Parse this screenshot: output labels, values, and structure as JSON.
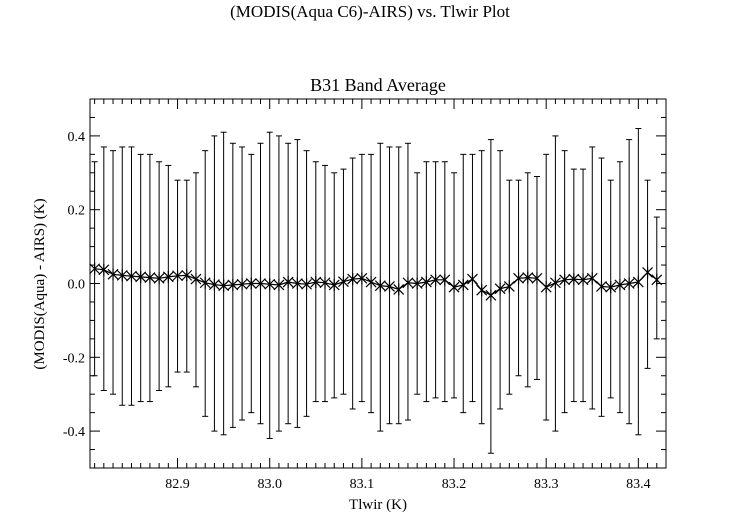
{
  "page_title": "(MODIS(Aqua C6)-AIRS) vs. Tlwir Plot",
  "chart_data": {
    "type": "scatter",
    "title": "B31 Band Average",
    "xlabel": "Tlwir (K)",
    "ylabel": "(MODIS(Aqua) - AIRS) (K)",
    "xlim": [
      82.805,
      83.43
    ],
    "ylim": [
      -0.5,
      0.5
    ],
    "xticks": [
      "82.9",
      "83.0",
      "83.1",
      "83.2",
      "83.3",
      "83.4"
    ],
    "xtick_values": [
      82.9,
      83.0,
      83.1,
      83.2,
      83.3,
      83.4
    ],
    "yticks": [
      "-0.4",
      "-0.2",
      "0.0",
      "0.2",
      "0.4"
    ],
    "ytick_values": [
      -0.4,
      -0.2,
      0.0,
      0.2,
      0.4
    ],
    "grid": false,
    "marker": "asterisk",
    "error_bars": true,
    "points": [
      {
        "x": 82.81,
        "y": 0.04,
        "lo": -0.25,
        "hi": 0.33
      },
      {
        "x": 82.82,
        "y": 0.037,
        "lo": -0.29,
        "hi": 0.37
      },
      {
        "x": 82.83,
        "y": 0.025,
        "lo": -0.3,
        "hi": 0.36
      },
      {
        "x": 82.84,
        "y": 0.022,
        "lo": -0.33,
        "hi": 0.37
      },
      {
        "x": 82.85,
        "y": 0.02,
        "lo": -0.33,
        "hi": 0.37
      },
      {
        "x": 82.86,
        "y": 0.018,
        "lo": -0.32,
        "hi": 0.35
      },
      {
        "x": 82.87,
        "y": 0.016,
        "lo": -0.32,
        "hi": 0.35
      },
      {
        "x": 82.88,
        "y": 0.014,
        "lo": -0.29,
        "hi": 0.33
      },
      {
        "x": 82.89,
        "y": 0.018,
        "lo": -0.28,
        "hi": 0.32
      },
      {
        "x": 82.9,
        "y": 0.021,
        "lo": -0.24,
        "hi": 0.28
      },
      {
        "x": 82.91,
        "y": 0.022,
        "lo": -0.24,
        "hi": 0.28
      },
      {
        "x": 82.92,
        "y": 0.012,
        "lo": -0.28,
        "hi": 0.3
      },
      {
        "x": 82.93,
        "y": 0.002,
        "lo": -0.36,
        "hi": 0.36
      },
      {
        "x": 82.94,
        "y": -0.003,
        "lo": -0.4,
        "hi": 0.4
      },
      {
        "x": 82.95,
        "y": -0.006,
        "lo": -0.41,
        "hi": 0.41
      },
      {
        "x": 82.96,
        "y": -0.004,
        "lo": -0.39,
        "hi": 0.38
      },
      {
        "x": 82.97,
        "y": -0.002,
        "lo": -0.37,
        "hi": 0.37
      },
      {
        "x": 82.98,
        "y": 0.0,
        "lo": -0.35,
        "hi": 0.35
      },
      {
        "x": 82.99,
        "y": 0.0,
        "lo": -0.38,
        "hi": 0.38
      },
      {
        "x": 83.0,
        "y": -0.002,
        "lo": -0.42,
        "hi": 0.41
      },
      {
        "x": 83.01,
        "y": -0.004,
        "lo": -0.4,
        "hi": 0.4
      },
      {
        "x": 83.02,
        "y": 0.004,
        "lo": -0.38,
        "hi": 0.38
      },
      {
        "x": 83.03,
        "y": 0.0,
        "lo": -0.39,
        "hi": 0.39
      },
      {
        "x": 83.04,
        "y": -0.002,
        "lo": -0.36,
        "hi": 0.36
      },
      {
        "x": 83.05,
        "y": 0.004,
        "lo": -0.32,
        "hi": 0.33
      },
      {
        "x": 83.06,
        "y": 0.002,
        "lo": -0.32,
        "hi": 0.32
      },
      {
        "x": 83.07,
        "y": -0.004,
        "lo": -0.31,
        "hi": 0.3
      },
      {
        "x": 83.08,
        "y": 0.005,
        "lo": -0.3,
        "hi": 0.31
      },
      {
        "x": 83.09,
        "y": 0.012,
        "lo": -0.34,
        "hi": 0.34
      },
      {
        "x": 83.1,
        "y": 0.014,
        "lo": -0.32,
        "hi": 0.35
      },
      {
        "x": 83.11,
        "y": 0.004,
        "lo": -0.35,
        "hi": 0.35
      },
      {
        "x": 83.12,
        "y": -0.006,
        "lo": -0.4,
        "hi": 0.38
      },
      {
        "x": 83.13,
        "y": -0.008,
        "lo": -0.38,
        "hi": 0.37
      },
      {
        "x": 83.14,
        "y": -0.016,
        "lo": -0.38,
        "hi": 0.37
      },
      {
        "x": 83.15,
        "y": 0.002,
        "lo": -0.37,
        "hi": 0.38
      },
      {
        "x": 83.16,
        "y": 0.0,
        "lo": -0.3,
        "hi": 0.3
      },
      {
        "x": 83.17,
        "y": 0.004,
        "lo": -0.32,
        "hi": 0.33
      },
      {
        "x": 83.18,
        "y": 0.01,
        "lo": -0.31,
        "hi": 0.33
      },
      {
        "x": 83.19,
        "y": 0.01,
        "lo": -0.32,
        "hi": 0.33
      },
      {
        "x": 83.2,
        "y": -0.01,
        "lo": -0.31,
        "hi": 0.3
      },
      {
        "x": 83.21,
        "y": -0.004,
        "lo": -0.35,
        "hi": 0.35
      },
      {
        "x": 83.22,
        "y": 0.012,
        "lo": -0.32,
        "hi": 0.35
      },
      {
        "x": 83.23,
        "y": -0.018,
        "lo": -0.38,
        "hi": 0.36
      },
      {
        "x": 83.24,
        "y": -0.032,
        "lo": -0.46,
        "hi": 0.39
      },
      {
        "x": 83.25,
        "y": -0.014,
        "lo": -0.34,
        "hi": 0.36
      },
      {
        "x": 83.26,
        "y": -0.008,
        "lo": -0.3,
        "hi": 0.28
      },
      {
        "x": 83.27,
        "y": 0.014,
        "lo": -0.25,
        "hi": 0.28
      },
      {
        "x": 83.28,
        "y": 0.016,
        "lo": -0.28,
        "hi": 0.3
      },
      {
        "x": 83.29,
        "y": 0.014,
        "lo": -0.26,
        "hi": 0.29
      },
      {
        "x": 83.3,
        "y": -0.01,
        "lo": -0.37,
        "hi": 0.35
      },
      {
        "x": 83.31,
        "y": 0.002,
        "lo": -0.4,
        "hi": 0.4
      },
      {
        "x": 83.32,
        "y": 0.01,
        "lo": -0.35,
        "hi": 0.36
      },
      {
        "x": 83.33,
        "y": 0.012,
        "lo": -0.32,
        "hi": 0.31
      },
      {
        "x": 83.34,
        "y": 0.01,
        "lo": -0.32,
        "hi": 0.31
      },
      {
        "x": 83.35,
        "y": 0.014,
        "lo": -0.34,
        "hi": 0.37
      },
      {
        "x": 83.36,
        "y": -0.008,
        "lo": -0.36,
        "hi": 0.34
      },
      {
        "x": 83.37,
        "y": -0.01,
        "lo": -0.31,
        "hi": 0.28
      },
      {
        "x": 83.38,
        "y": -0.004,
        "lo": -0.35,
        "hi": 0.33
      },
      {
        "x": 83.39,
        "y": 0.0,
        "lo": -0.38,
        "hi": 0.39
      },
      {
        "x": 83.4,
        "y": 0.004,
        "lo": -0.41,
        "hi": 0.42
      },
      {
        "x": 83.41,
        "y": 0.03,
        "lo": -0.23,
        "hi": 0.28
      },
      {
        "x": 83.42,
        "y": 0.01,
        "lo": -0.15,
        "hi": 0.18
      }
    ]
  }
}
